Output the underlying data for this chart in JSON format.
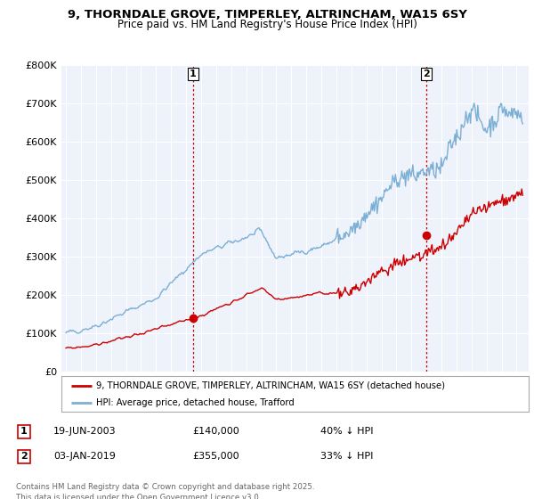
{
  "title_line1": "9, THORNDALE GROVE, TIMPERLEY, ALTRINCHAM, WA15 6SY",
  "title_line2": "Price paid vs. HM Land Registry's House Price Index (HPI)",
  "background_color": "#ffffff",
  "plot_bg_color": "#eef2fb",
  "grid_color": "#ffffff",
  "hpi_color": "#7bafd4",
  "price_color": "#cc0000",
  "sale1_date": "19-JUN-2003",
  "sale1_price": 140000,
  "sale1_year": 2003.47,
  "sale2_date": "03-JAN-2019",
  "sale2_price": 355000,
  "sale2_year": 2019.01,
  "legend_label1": "9, THORNDALE GROVE, TIMPERLEY, ALTRINCHAM, WA15 6SY (detached house)",
  "legend_label2": "HPI: Average price, detached house, Trafford",
  "footnote": "Contains HM Land Registry data © Crown copyright and database right 2025.\nThis data is licensed under the Open Government Licence v3.0.",
  "ylim_max": 800000,
  "annotation1_pct": "40% ↓ HPI",
  "annotation2_pct": "33% ↓ HPI",
  "sale1_price_str": "£140,000",
  "sale2_price_str": "£355,000"
}
